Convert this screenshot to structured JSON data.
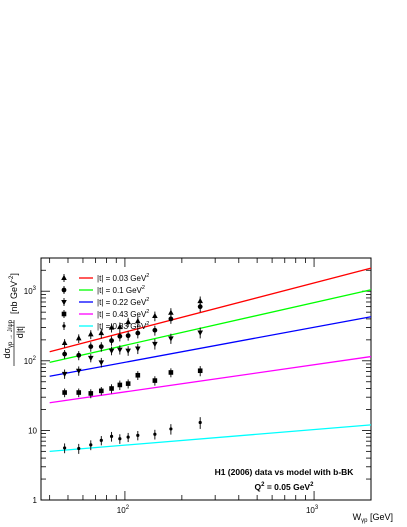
{
  "chart_data": {
    "type": "scatter",
    "xlabel": "W_{γp} [GeV]",
    "xlabel_main": "W",
    "xlabel_sub": "γp",
    "xlabel_unit": " [GeV]",
    "ylabel_numer": "dσ",
    "ylabel_numer_sub": "γp → J/ψp",
    "ylabel_denom": "d|t|",
    "ylabel_unit": "[nb GeV",
    "ylabel_unit_sup": "-2",
    "ylabel_unit_close": "]",
    "x_scale": "log",
    "y_scale": "log",
    "xlim": [
      36,
      2000
    ],
    "ylim": [
      1,
      3000
    ],
    "x_ticks": [
      {
        "value": 100,
        "base": "10",
        "exp": "2"
      },
      {
        "value": 1000,
        "base": "10",
        "exp": "3"
      }
    ],
    "y_ticks": [
      {
        "value": 1,
        "label": "1"
      },
      {
        "value": 10,
        "label": "10"
      },
      {
        "value": 100,
        "label": "10",
        "exp": "2"
      },
      {
        "value": 1000,
        "label": "10",
        "exp": "3"
      }
    ],
    "grid": false,
    "legend_position": "top-left",
    "annotation_line1": "H1 (2006) data vs model with b-BK",
    "annotation_line2_base": "Q",
    "annotation_line2_sup": "2",
    "annotation_line2_rest": " = 0.05 GeV",
    "annotation_line2_sup2": "2",
    "series": [
      {
        "name": "|t| = 0.03 GeV",
        "name_sup": "2",
        "color": "#ff0000",
        "marker": "triangle",
        "model": {
          "x": [
            40,
            2000
          ],
          "y": [
            135,
            2150
          ]
        },
        "points": [
          {
            "x": 48,
            "y": 180,
            "err": 25
          },
          {
            "x": 57,
            "y": 210,
            "err": 30
          },
          {
            "x": 66,
            "y": 240,
            "err": 35
          },
          {
            "x": 75,
            "y": 250,
            "err": 40
          },
          {
            "x": 85,
            "y": 300,
            "err": 45
          },
          {
            "x": 94,
            "y": 305,
            "err": 50
          },
          {
            "x": 104,
            "y": 360,
            "err": 55
          },
          {
            "x": 117,
            "y": 370,
            "err": 60
          },
          {
            "x": 144,
            "y": 440,
            "err": 70
          },
          {
            "x": 175,
            "y": 490,
            "err": 80
          },
          {
            "x": 250,
            "y": 720,
            "err": 120
          }
        ]
      },
      {
        "name": "|t| = 0.1 GeV",
        "name_sup": "2",
        "color": "#00ff00",
        "marker": "circle",
        "model": {
          "x": [
            40,
            2000
          ],
          "y": [
            95,
            1050
          ]
        },
        "points": [
          {
            "x": 48,
            "y": 125,
            "err": 18
          },
          {
            "x": 57,
            "y": 120,
            "err": 18
          },
          {
            "x": 66,
            "y": 160,
            "err": 25
          },
          {
            "x": 75,
            "y": 160,
            "err": 25
          },
          {
            "x": 85,
            "y": 195,
            "err": 30
          },
          {
            "x": 94,
            "y": 225,
            "err": 35
          },
          {
            "x": 104,
            "y": 230,
            "err": 35
          },
          {
            "x": 117,
            "y": 250,
            "err": 40
          },
          {
            "x": 144,
            "y": 275,
            "err": 45
          },
          {
            "x": 175,
            "y": 400,
            "err": 60
          },
          {
            "x": 250,
            "y": 600,
            "err": 100
          }
        ]
      },
      {
        "name": "|t| = 0.22 GeV",
        "name_sup": "2",
        "color": "#0000ff",
        "marker": "triangle-down",
        "model": {
          "x": [
            40,
            2000
          ],
          "y": [
            60,
            430
          ]
        },
        "points": [
          {
            "x": 48,
            "y": 65,
            "err": 10
          },
          {
            "x": 57,
            "y": 72,
            "err": 11
          },
          {
            "x": 66,
            "y": 110,
            "err": 15
          },
          {
            "x": 75,
            "y": 95,
            "err": 15
          },
          {
            "x": 85,
            "y": 140,
            "err": 20
          },
          {
            "x": 94,
            "y": 145,
            "err": 22
          },
          {
            "x": 104,
            "y": 140,
            "err": 22
          },
          {
            "x": 117,
            "y": 150,
            "err": 25
          },
          {
            "x": 144,
            "y": 175,
            "err": 30
          },
          {
            "x": 175,
            "y": 210,
            "err": 35
          },
          {
            "x": 250,
            "y": 255,
            "err": 45
          }
        ]
      },
      {
        "name": "|t| = 0.43 GeV",
        "name_sup": "2",
        "color": "#ff00ff",
        "marker": "square",
        "model": {
          "x": [
            40,
            2000
          ],
          "y": [
            25,
            115
          ]
        },
        "points": [
          {
            "x": 48,
            "y": 35,
            "err": 5
          },
          {
            "x": 57,
            "y": 35,
            "err": 5
          },
          {
            "x": 66,
            "y": 34,
            "err": 5
          },
          {
            "x": 75,
            "y": 37,
            "err": 5
          },
          {
            "x": 85,
            "y": 40,
            "err": 6
          },
          {
            "x": 94,
            "y": 45,
            "err": 7
          },
          {
            "x": 104,
            "y": 47,
            "err": 7
          },
          {
            "x": 117,
            "y": 62,
            "err": 9
          },
          {
            "x": 144,
            "y": 52,
            "err": 8
          },
          {
            "x": 175,
            "y": 68,
            "err": 10
          },
          {
            "x": 250,
            "y": 72,
            "err": 12
          }
        ]
      },
      {
        "name": "|t| = 0.83 GeV",
        "name_sup": "2",
        "color": "#00ffff",
        "marker": "star",
        "model": {
          "x": [
            40,
            2000
          ],
          "y": [
            5,
            12
          ]
        },
        "points": [
          {
            "x": 48,
            "y": 5.6,
            "err": 0.9
          },
          {
            "x": 57,
            "y": 5.5,
            "err": 0.9
          },
          {
            "x": 66,
            "y": 6.2,
            "err": 1.0
          },
          {
            "x": 75,
            "y": 7.2,
            "err": 1.1
          },
          {
            "x": 85,
            "y": 8.2,
            "err": 1.3
          },
          {
            "x": 94,
            "y": 7.6,
            "err": 1.2
          },
          {
            "x": 104,
            "y": 8.0,
            "err": 1.2
          },
          {
            "x": 117,
            "y": 8.5,
            "err": 1.3
          },
          {
            "x": 144,
            "y": 8.8,
            "err": 1.4
          },
          {
            "x": 175,
            "y": 10.5,
            "err": 1.8
          },
          {
            "x": 250,
            "y": 13,
            "err": 2.5
          }
        ]
      }
    ]
  }
}
